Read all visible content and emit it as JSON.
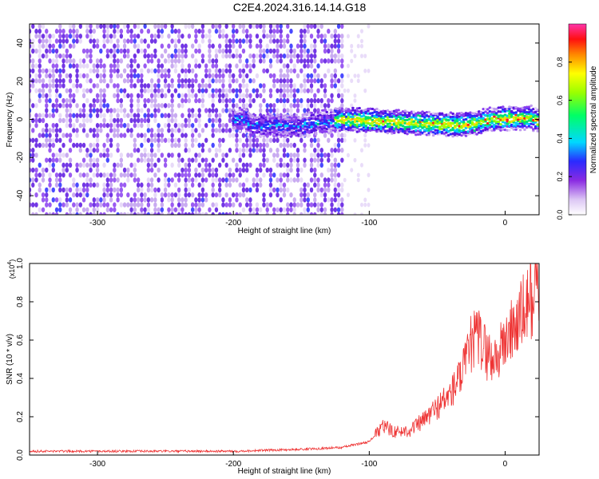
{
  "title": "C2E4.2024.316.14.14.G18",
  "chart_data": [
    {
      "type": "heatmap",
      "xlabel": "Height of straight line (km)",
      "ylabel": "Frequency (Hz)",
      "xlim": [
        -350,
        25
      ],
      "ylim": [
        -50,
        50
      ],
      "x_ticks": [
        -300,
        -200,
        -100,
        0
      ],
      "y_ticks": [
        -40,
        -20,
        0,
        20,
        40
      ],
      "colorbar": {
        "label": "Normalized spectral amplitude",
        "range": [
          0.0,
          1.0
        ],
        "ticks": [
          "0.0",
          "0.2",
          "0.4",
          "0.6",
          "0.8"
        ]
      },
      "ridge_frequency_hz": [
        {
          "x": -190,
          "y": -3
        },
        {
          "x": -150,
          "y": -3
        },
        {
          "x": -120,
          "y": 0
        },
        {
          "x": -90,
          "y": -1
        },
        {
          "x": -60,
          "y": -2
        },
        {
          "x": -30,
          "y": -3
        },
        {
          "x": -10,
          "y": 0
        },
        {
          "x": 20,
          "y": 1
        }
      ]
    },
    {
      "type": "line",
      "xlabel": "Height of straight line (km)",
      "ylabel": "SNR (10 * v/v)",
      "yscale_label": "(x10",
      "yscale_exp": "4",
      "xlim": [
        -350,
        25
      ],
      "ylim": [
        0.0,
        1.0
      ],
      "x_ticks": [
        -300,
        -200,
        -100,
        0
      ],
      "y_ticks": [
        "0.0",
        "0.2",
        "0.4",
        "0.6",
        "0.8",
        "1.0"
      ],
      "series": [
        {
          "color": "#ee3333",
          "x": [
            -350,
            -300,
            -250,
            -200,
            -150,
            -120,
            -100,
            -90,
            -80,
            -70,
            -60,
            -50,
            -40,
            -30,
            -25,
            -20,
            -15,
            -10,
            -5,
            0,
            10,
            20,
            25
          ],
          "y": [
            0.02,
            0.02,
            0.02,
            0.02,
            0.03,
            0.04,
            0.07,
            0.15,
            0.12,
            0.13,
            0.18,
            0.25,
            0.32,
            0.45,
            0.58,
            0.62,
            0.55,
            0.5,
            0.52,
            0.6,
            0.7,
            0.83,
            0.9
          ]
        }
      ]
    }
  ]
}
